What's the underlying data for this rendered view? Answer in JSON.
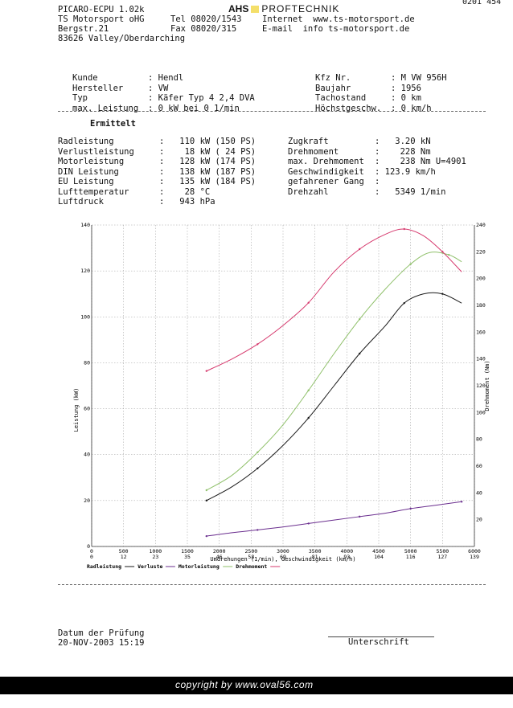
{
  "corner_code": "0201 454",
  "header": {
    "program": "PICARO-ECPU 1.02k",
    "logo_left": "AHS",
    "logo_right": "PROFTECHNIK",
    "company_line1": "TS Motorsport oHG",
    "company_line2": "Bergstr.21",
    "company_line3": "83626 Valley/Oberdarching",
    "tel": "Tel 08020/1543",
    "fax": "Fax 08020/315",
    "internet": "Internet  www.ts-motorsport.de",
    "email": "E-mail  info ts-motorsport.de"
  },
  "vehicle_left": [
    {
      "label": "Kunde",
      "value": ": Hendl"
    },
    {
      "label": "Hersteller",
      "value": ": VW"
    },
    {
      "label": "Typ",
      "value": ": Käfer Typ 4 2,4 DVA"
    },
    {
      "label": "max. Leistung",
      "value": ": 0 kW bei 0 1/min"
    }
  ],
  "vehicle_right": [
    {
      "label": "Kfz Nr.",
      "value": ": M VW 956H"
    },
    {
      "label": "Baujahr",
      "value": ": 1956"
    },
    {
      "label": "Tachostand",
      "value": ": 0 km"
    },
    {
      "label": "Höchstgeschw.",
      "value": ": 0 km/h"
    }
  ],
  "section_title": "Ermittelt",
  "results_left": [
    {
      "label": "Radleistung",
      "value": ":   110 kW (150 PS)"
    },
    {
      "label": "Verlustleistung",
      "value": ":    18 kW ( 24 PS)"
    },
    {
      "label": "Motorleistung",
      "value": ":   128 kW (174 PS)"
    },
    {
      "label": "DIN Leistung",
      "value": ":   138 kW (187 PS)"
    },
    {
      "label": "EU Leistung",
      "value": ":   135 kW (184 PS)"
    },
    {
      "label": "Lufttemperatur",
      "value": ":    28 °C"
    },
    {
      "label": "Luftdruck",
      "value": ":   943 hPa"
    }
  ],
  "results_right": [
    {
      "label": "Zugkraft",
      "value": ":   3.20 kN"
    },
    {
      "label": "Drehmoment",
      "value": ":    228 Nm"
    },
    {
      "label": "max. Drehmoment",
      "value": ":    238 Nm U=4901"
    },
    {
      "label": "Geschwindigkeit",
      "value": ": 123.9 km/h"
    },
    {
      "label": "gefahrener Gang",
      "value": ":"
    },
    {
      "label": "Drehzahl",
      "value": ":   5349 1/min"
    }
  ],
  "footer": {
    "date_label": "Datum der Prüfung",
    "date_value": "20-NOV-2003 15:19",
    "signature": "Unterschrift"
  },
  "copyright": "copyright by www.oval56.com",
  "colors": {
    "radleistung": "#1a1a1a",
    "verluste": "#6b2f8f",
    "motorleistung": "#8fc06a",
    "drehmoment": "#d63a6e"
  },
  "chart_data": {
    "type": "line",
    "xlabel": "Umdrehungen (1/min), Geschwindigkeit (km/h)",
    "ylabel_left": "Leistung (kW)",
    "ylabel_right": "Drehmoment (Nm)",
    "x_range": [
      0,
      6000
    ],
    "y_left_range": [
      0,
      140
    ],
    "y_right_range": [
      0,
      240
    ],
    "x_ticks": [
      0,
      500,
      1000,
      1500,
      2000,
      2500,
      3000,
      3500,
      4000,
      4500,
      5000,
      5500,
      6000
    ],
    "speed_ticks": [
      0,
      12,
      23,
      35,
      46,
      58,
      69,
      81,
      93,
      104,
      116,
      127,
      139
    ],
    "y_left_ticks": [
      0,
      20,
      40,
      60,
      80,
      100,
      120,
      140
    ],
    "y_right_ticks": [
      20,
      40,
      60,
      80,
      100,
      120,
      140,
      160,
      180,
      200,
      220,
      240
    ],
    "grid": true,
    "legend": "bottom",
    "series": [
      {
        "name": "Radleistung",
        "axis": "left",
        "color_key": "radleistung",
        "x": [
          1800,
          2200,
          2600,
          3000,
          3400,
          3800,
          4200,
          4600,
          4900,
          5200,
          5500,
          5800
        ],
        "y": [
          20,
          26,
          34,
          44,
          56,
          70,
          84,
          96,
          106,
          110,
          110,
          106
        ]
      },
      {
        "name": "Verluste",
        "axis": "left",
        "color_key": "verluste",
        "x": [
          1800,
          2200,
          2600,
          3000,
          3400,
          3800,
          4200,
          4600,
          5000,
          5400,
          5800
        ],
        "y": [
          4.5,
          6,
          7.2,
          8.5,
          10,
          11.5,
          13,
          14.5,
          16.5,
          18,
          19.5
        ]
      },
      {
        "name": "Motorleistung",
        "axis": "left",
        "color_key": "motorleistung",
        "x": [
          1800,
          2200,
          2600,
          3000,
          3400,
          3800,
          4200,
          4600,
          5000,
          5300,
          5600,
          5800
        ],
        "y": [
          24.5,
          31,
          41,
          53,
          68,
          84,
          99,
          112,
          123,
          128,
          127,
          124
        ]
      },
      {
        "name": "Drehmoment",
        "axis": "right",
        "color_key": "drehmoment",
        "x": [
          1800,
          2200,
          2600,
          3000,
          3400,
          3800,
          4200,
          4600,
          4900,
          5200,
          5500,
          5800
        ],
        "y": [
          131,
          140,
          151,
          165,
          182,
          205,
          222,
          233,
          237,
          232,
          220,
          205
        ]
      }
    ]
  }
}
